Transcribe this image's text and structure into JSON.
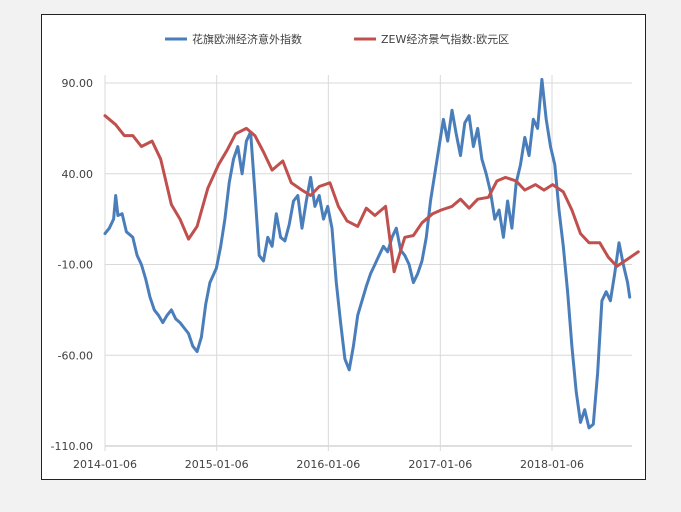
{
  "chart_data": {
    "type": "line",
    "title": "",
    "xlabel": "",
    "ylabel": "",
    "x_tick_labels": [
      "2014-01-06",
      "2015-01-06",
      "2016-01-06",
      "2017-01-06",
      "2018-01-06"
    ],
    "xlim": [
      "2014-01-06",
      "2018-10-15"
    ],
    "y_tick_labels": [
      "90.00",
      "40.00",
      "-10.00",
      "-60.00",
      "-110.00"
    ],
    "ylim": [
      -110,
      90
    ],
    "grid": "horizontal",
    "legend_position": "top",
    "series": [
      {
        "name": "花旗欧洲经济意外指数",
        "color": "#4a7ebb",
        "points": [
          [
            "2014-01-06",
            7
          ],
          [
            "2014-01-20",
            10
          ],
          [
            "2014-02-03",
            15
          ],
          [
            "2014-02-10",
            28
          ],
          [
            "2014-02-17",
            17
          ],
          [
            "2014-03-03",
            18
          ],
          [
            "2014-03-17",
            8
          ],
          [
            "2014-04-07",
            5
          ],
          [
            "2014-04-21",
            -5
          ],
          [
            "2014-05-05",
            -10
          ],
          [
            "2014-05-19",
            -18
          ],
          [
            "2014-06-02",
            -28
          ],
          [
            "2014-06-16",
            -35
          ],
          [
            "2014-06-30",
            -38
          ],
          [
            "2014-07-14",
            -42
          ],
          [
            "2014-07-28",
            -38
          ],
          [
            "2014-08-11",
            -35
          ],
          [
            "2014-08-25",
            -40
          ],
          [
            "2014-09-08",
            -42
          ],
          [
            "2014-09-22",
            -45
          ],
          [
            "2014-10-06",
            -48
          ],
          [
            "2014-10-20",
            -55
          ],
          [
            "2014-11-03",
            -58
          ],
          [
            "2014-11-17",
            -50
          ],
          [
            "2014-12-01",
            -32
          ],
          [
            "2014-12-15",
            -20
          ],
          [
            "2015-01-05",
            -12
          ],
          [
            "2015-01-19",
            0
          ],
          [
            "2015-02-02",
            15
          ],
          [
            "2015-02-16",
            35
          ],
          [
            "2015-03-02",
            48
          ],
          [
            "2015-03-16",
            55
          ],
          [
            "2015-03-30",
            40
          ],
          [
            "2015-04-13",
            58
          ],
          [
            "2015-04-27",
            63
          ],
          [
            "2015-05-11",
            30
          ],
          [
            "2015-05-25",
            -5
          ],
          [
            "2015-06-08",
            -8
          ],
          [
            "2015-06-22",
            5
          ],
          [
            "2015-07-06",
            0
          ],
          [
            "2015-07-20",
            18
          ],
          [
            "2015-08-03",
            5
          ],
          [
            "2015-08-17",
            3
          ],
          [
            "2015-08-31",
            12
          ],
          [
            "2015-09-14",
            25
          ],
          [
            "2015-09-28",
            28
          ],
          [
            "2015-10-12",
            10
          ],
          [
            "2015-10-26",
            25
          ],
          [
            "2015-11-09",
            38
          ],
          [
            "2015-11-23",
            22
          ],
          [
            "2015-12-07",
            28
          ],
          [
            "2015-12-21",
            15
          ],
          [
            "2016-01-04",
            22
          ],
          [
            "2016-01-18",
            10
          ],
          [
            "2016-02-01",
            -20
          ],
          [
            "2016-02-15",
            -42
          ],
          [
            "2016-02-29",
            -62
          ],
          [
            "2016-03-14",
            -68
          ],
          [
            "2016-03-28",
            -55
          ],
          [
            "2016-04-11",
            -38
          ],
          [
            "2016-04-25",
            -30
          ],
          [
            "2016-05-09",
            -22
          ],
          [
            "2016-05-23",
            -15
          ],
          [
            "2016-06-06",
            -10
          ],
          [
            "2016-06-20",
            -5
          ],
          [
            "2016-07-04",
            0
          ],
          [
            "2016-07-18",
            -3
          ],
          [
            "2016-08-01",
            5
          ],
          [
            "2016-08-15",
            10
          ],
          [
            "2016-08-29",
            -2
          ],
          [
            "2016-09-12",
            -5
          ],
          [
            "2016-09-26",
            -10
          ],
          [
            "2016-10-10",
            -20
          ],
          [
            "2016-10-24",
            -15
          ],
          [
            "2016-11-07",
            -8
          ],
          [
            "2016-11-21",
            5
          ],
          [
            "2016-12-05",
            25
          ],
          [
            "2016-12-19",
            40
          ],
          [
            "2017-01-02",
            55
          ],
          [
            "2017-01-16",
            70
          ],
          [
            "2017-01-30",
            58
          ],
          [
            "2017-02-13",
            75
          ],
          [
            "2017-02-27",
            62
          ],
          [
            "2017-03-13",
            50
          ],
          [
            "2017-03-27",
            68
          ],
          [
            "2017-04-10",
            72
          ],
          [
            "2017-04-24",
            55
          ],
          [
            "2017-05-08",
            65
          ],
          [
            "2017-05-22",
            48
          ],
          [
            "2017-06-05",
            40
          ],
          [
            "2017-06-19",
            30
          ],
          [
            "2017-07-03",
            15
          ],
          [
            "2017-07-17",
            20
          ],
          [
            "2017-07-31",
            5
          ],
          [
            "2017-08-14",
            25
          ],
          [
            "2017-08-28",
            10
          ],
          [
            "2017-09-11",
            35
          ],
          [
            "2017-09-25",
            45
          ],
          [
            "2017-10-09",
            60
          ],
          [
            "2017-10-23",
            50
          ],
          [
            "2017-11-06",
            70
          ],
          [
            "2017-11-20",
            65
          ],
          [
            "2017-12-04",
            92
          ],
          [
            "2017-12-18",
            70
          ],
          [
            "2018-01-01",
            55
          ],
          [
            "2018-01-15",
            45
          ],
          [
            "2018-01-29",
            20
          ],
          [
            "2018-02-12",
            0
          ],
          [
            "2018-02-26",
            -25
          ],
          [
            "2018-03-12",
            -55
          ],
          [
            "2018-03-26",
            -80
          ],
          [
            "2018-04-09",
            -97
          ],
          [
            "2018-04-23",
            -90
          ],
          [
            "2018-05-07",
            -100
          ],
          [
            "2018-05-21",
            -98
          ],
          [
            "2018-06-04",
            -70
          ],
          [
            "2018-06-18",
            -30
          ],
          [
            "2018-07-02",
            -25
          ],
          [
            "2018-07-16",
            -30
          ],
          [
            "2018-07-30",
            -15
          ],
          [
            "2018-08-13",
            2
          ],
          [
            "2018-08-27",
            -10
          ],
          [
            "2018-09-10",
            -20
          ],
          [
            "2018-09-17",
            -28
          ]
        ]
      },
      {
        "name": "ZEW经济景气指数:欧元区",
        "color": "#c0504d",
        "points": [
          [
            "2014-01-06",
            72
          ],
          [
            "2014-02-10",
            67
          ],
          [
            "2014-03-10",
            61
          ],
          [
            "2014-04-07",
            61
          ],
          [
            "2014-05-05",
            55
          ],
          [
            "2014-06-09",
            58
          ],
          [
            "2014-07-07",
            48
          ],
          [
            "2014-08-11",
            23
          ],
          [
            "2014-09-08",
            15
          ],
          [
            "2014-10-06",
            4
          ],
          [
            "2014-11-03",
            11
          ],
          [
            "2014-12-08",
            32
          ],
          [
            "2015-01-12",
            45
          ],
          [
            "2015-02-09",
            53
          ],
          [
            "2015-03-09",
            62
          ],
          [
            "2015-04-13",
            65
          ],
          [
            "2015-05-11",
            61
          ],
          [
            "2015-06-08",
            52
          ],
          [
            "2015-07-06",
            42
          ],
          [
            "2015-08-10",
            47
          ],
          [
            "2015-09-07",
            35
          ],
          [
            "2015-10-12",
            31
          ],
          [
            "2015-11-09",
            28
          ],
          [
            "2015-12-07",
            33
          ],
          [
            "2016-01-11",
            35
          ],
          [
            "2016-02-08",
            22
          ],
          [
            "2016-03-07",
            14
          ],
          [
            "2016-04-11",
            11
          ],
          [
            "2016-05-09",
            21
          ],
          [
            "2016-06-06",
            17
          ],
          [
            "2016-07-11",
            22
          ],
          [
            "2016-08-08",
            -14
          ],
          [
            "2016-09-12",
            5
          ],
          [
            "2016-10-10",
            6
          ],
          [
            "2016-11-07",
            13
          ],
          [
            "2016-12-12",
            18
          ],
          [
            "2017-01-09",
            20
          ],
          [
            "2017-02-13",
            22
          ],
          [
            "2017-03-13",
            26
          ],
          [
            "2017-04-10",
            21
          ],
          [
            "2017-05-08",
            26
          ],
          [
            "2017-06-12",
            27
          ],
          [
            "2017-07-10",
            36
          ],
          [
            "2017-08-07",
            38
          ],
          [
            "2017-09-11",
            36
          ],
          [
            "2017-10-09",
            31
          ],
          [
            "2017-11-13",
            34
          ],
          [
            "2017-12-11",
            31
          ],
          [
            "2018-01-08",
            34
          ],
          [
            "2018-02-12",
            30
          ],
          [
            "2018-03-12",
            20
          ],
          [
            "2018-04-09",
            7
          ],
          [
            "2018-05-07",
            2
          ],
          [
            "2018-06-11",
            2
          ],
          [
            "2018-07-09",
            -6
          ],
          [
            "2018-08-06",
            -11
          ],
          [
            "2018-09-10",
            -7
          ],
          [
            "2018-10-15",
            -3
          ]
        ]
      }
    ]
  }
}
